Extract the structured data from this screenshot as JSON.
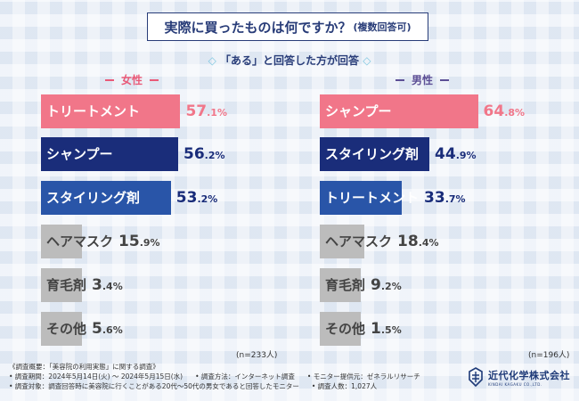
{
  "header": {
    "title": "実際に買ったものは何ですか？",
    "title_note": "(複数回答可)",
    "subtitle": "「ある」と回答した方が回答"
  },
  "chart_data": {
    "type": "bar",
    "orientation": "horizontal",
    "unit": "%",
    "xlim": [
      0,
      100
    ],
    "panels": [
      {
        "group": "女性",
        "sample": "(n=233人)",
        "bars": [
          {
            "category": "トリートメント",
            "value": 57.1,
            "color": "#f17689",
            "text_color": "#ffffff",
            "value_color": "#f17689"
          },
          {
            "category": "シャンプー",
            "value": 56.2,
            "color": "#1a2d7a",
            "text_color": "#ffffff",
            "value_color": "#1a2d7a"
          },
          {
            "category": "スタイリング剤",
            "value": 53.2,
            "color": "#2955a8",
            "text_color": "#ffffff",
            "value_color": "#1a2d7a"
          },
          {
            "category": "ヘアマスク",
            "value": 15.9,
            "color": "#bcbcbc",
            "text_color": "#444444",
            "value_color": "#444444"
          },
          {
            "category": "育毛剤",
            "value": 3.4,
            "color": "#bcbcbc",
            "text_color": "#444444",
            "value_color": "#444444"
          },
          {
            "category": "その他",
            "value": 5.6,
            "color": "#bcbcbc",
            "text_color": "#444444",
            "value_color": "#444444"
          }
        ]
      },
      {
        "group": "男性",
        "sample": "(n=196人)",
        "bars": [
          {
            "category": "シャンプー",
            "value": 64.8,
            "color": "#f17689",
            "text_color": "#ffffff",
            "value_color": "#f17689"
          },
          {
            "category": "スタイリング剤",
            "value": 44.9,
            "color": "#1a2d7a",
            "text_color": "#ffffff",
            "value_color": "#1a2d7a"
          },
          {
            "category": "トリートメント",
            "value": 33.7,
            "color": "#2955a8",
            "text_color": "#ffffff",
            "value_color": "#1a2d7a"
          },
          {
            "category": "ヘアマスク",
            "value": 18.4,
            "color": "#bcbcbc",
            "text_color": "#444444",
            "value_color": "#444444"
          },
          {
            "category": "育毛剤",
            "value": 9.2,
            "color": "#bcbcbc",
            "text_color": "#444444",
            "value_color": "#444444"
          },
          {
            "category": "その他",
            "value": 1.5,
            "color": "#bcbcbc",
            "text_color": "#444444",
            "value_color": "#444444"
          }
        ]
      }
    ]
  },
  "footer": {
    "line1": "《調査概要：「美容院の利用実態」に関する調査》",
    "line2a": "• 調査期間：2024年5月14日(火) ～ 2024年5月15日(水)",
    "line2b": "• 調査方法：インターネット調査",
    "line2c": "• モニター提供元：ゼネラルリサーチ",
    "line3a": "• 調査対象：調査回答時に美容院に行くことがある20代～50代の男女であると回答したモニター",
    "line3b": "• 調査人数：1,027人"
  },
  "logo": {
    "name": "近代化学株式会社",
    "sub": "KINDAI KAGAKU CO.,LTD."
  }
}
